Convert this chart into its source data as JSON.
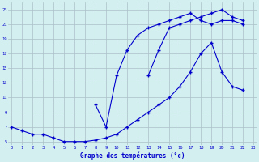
{
  "title": "Graphe des températures (°c)",
  "line1_x": [
    0,
    1,
    2,
    3,
    4,
    5,
    6,
    7,
    8,
    9,
    10,
    11,
    12,
    13,
    14,
    15,
    16,
    17,
    18,
    19,
    20,
    21,
    22
  ],
  "line1_y": [
    7.0,
    6.5,
    6.0,
    6.0,
    5.5,
    5.0,
    5.0,
    5.0,
    5.2,
    5.5,
    6.0,
    7.0,
    8.0,
    9.0,
    10.0,
    11.0,
    12.5,
    14.5,
    17.0,
    18.5,
    14.5,
    12.5,
    12.0
  ],
  "line2_x": [
    8,
    9,
    10,
    11,
    12,
    13,
    14,
    15,
    16,
    17,
    18,
    19,
    20,
    21,
    22
  ],
  "line2_y": [
    10.0,
    7.0,
    14.0,
    17.5,
    19.5,
    20.5,
    21.0,
    21.5,
    22.0,
    22.5,
    21.5,
    21.0,
    21.5,
    21.5,
    21.0
  ],
  "line3_x": [
    13,
    14,
    15,
    16,
    17,
    18,
    19,
    20,
    21,
    22
  ],
  "line3_y": [
    14.0,
    17.5,
    20.5,
    21.0,
    21.5,
    22.0,
    22.5,
    23.0,
    22.0,
    21.5
  ],
  "xlim": [
    -0.3,
    23.3
  ],
  "ylim": [
    4.5,
    24.0
  ],
  "yticks": [
    5,
    7,
    9,
    11,
    13,
    15,
    17,
    19,
    21,
    23
  ],
  "xticks": [
    0,
    1,
    2,
    3,
    4,
    5,
    6,
    7,
    8,
    9,
    10,
    11,
    12,
    13,
    14,
    15,
    16,
    17,
    18,
    19,
    20,
    21,
    22,
    23
  ],
  "line_color": "#0000cd",
  "bg_color": "#d4efef",
  "grid_color": "#aac0c8",
  "xlabel_color": "#0000cd",
  "tick_label_color": "#0000cd",
  "figsize": [
    3.2,
    2.0
  ],
  "dpi": 100
}
